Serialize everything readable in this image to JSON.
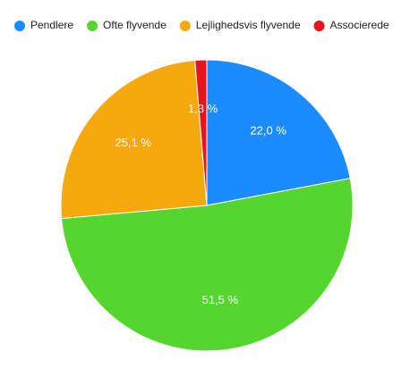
{
  "chart_data": {
    "type": "pie",
    "categories": [
      "Pendlere",
      "Ofte flyvende",
      "Lejlighedsvis flyvende",
      "Associerede"
    ],
    "values": [
      22.0,
      51.5,
      25.1,
      1.3
    ],
    "value_labels": [
      "22,0 %",
      "51,5 %",
      "25,1 %",
      "1,3 %"
    ],
    "colors": [
      "#1a8cff",
      "#55d62e",
      "#f5a90f",
      "#e8131c"
    ],
    "legend": "top"
  }
}
